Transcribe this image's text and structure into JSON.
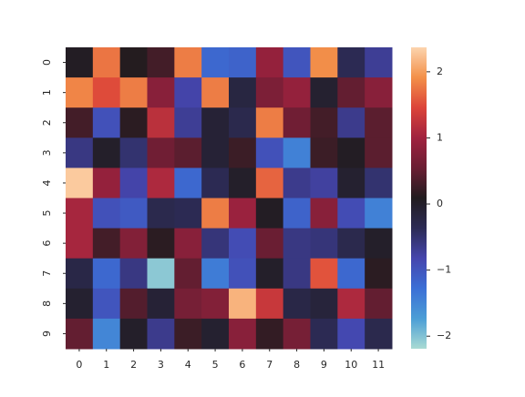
{
  "chart_data": {
    "type": "heatmap",
    "x_categories": [
      "0",
      "1",
      "2",
      "3",
      "4",
      "5",
      "6",
      "7",
      "8",
      "9",
      "10",
      "11"
    ],
    "y_categories": [
      "0",
      "1",
      "2",
      "3",
      "4",
      "5",
      "6",
      "7",
      "8",
      "9"
    ],
    "values": [
      [
        0.05,
        1.75,
        0.1,
        0.3,
        1.8,
        -1.2,
        -1.15,
        0.9,
        -1.0,
        1.9,
        -0.35,
        -0.7
      ],
      [
        1.85,
        1.5,
        1.8,
        0.8,
        -0.8,
        1.8,
        -0.2,
        0.7,
        0.9,
        -0.05,
        0.5,
        0.8
      ],
      [
        0.3,
        -0.95,
        0.15,
        1.2,
        -0.7,
        -0.1,
        -0.3,
        1.8,
        0.6,
        0.3,
        -0.65,
        0.45
      ],
      [
        -0.6,
        0.0,
        -0.5,
        0.6,
        0.45,
        -0.1,
        0.25,
        -0.95,
        -1.45,
        0.25,
        0.05,
        0.45
      ],
      [
        2.3,
        0.9,
        -0.8,
        1.1,
        -1.2,
        -0.35,
        0.0,
        1.65,
        -0.65,
        -0.75,
        -0.05,
        -0.5
      ],
      [
        1.05,
        -0.95,
        -1.05,
        -0.3,
        -0.35,
        1.8,
        0.95,
        0.05,
        -1.15,
        0.8,
        -0.9,
        -1.45
      ],
      [
        1.05,
        0.3,
        0.75,
        0.15,
        0.8,
        -0.55,
        -0.9,
        0.55,
        -0.6,
        -0.55,
        -0.3,
        0.0
      ],
      [
        -0.25,
        -1.2,
        -0.6,
        -2.05,
        0.5,
        -1.4,
        -0.95,
        0.0,
        -0.6,
        1.55,
        -1.2,
        0.15
      ],
      [
        -0.05,
        -1.0,
        0.4,
        -0.1,
        0.65,
        0.75,
        2.15,
        1.3,
        -0.25,
        -0.15,
        1.1,
        0.5
      ],
      [
        0.5,
        -1.5,
        0.0,
        -0.65,
        0.25,
        -0.05,
        0.8,
        0.2,
        0.65,
        -0.35,
        -0.85,
        -0.3
      ]
    ],
    "vlim": [
      -2.19,
      2.37
    ],
    "colors": [
      "#a9dbd3",
      "#4b9ed6",
      "#3b6fd6",
      "#4545ad",
      "#2c2b55",
      "#221c1f",
      "#6a1e33",
      "#a0223f",
      "#dc4439",
      "#f39049",
      "#fcd4ae"
    ],
    "colorbar_ticks": [
      {
        "value": -2,
        "label": "−2"
      },
      {
        "value": -1,
        "label": "−1"
      },
      0,
      1,
      2
    ]
  }
}
